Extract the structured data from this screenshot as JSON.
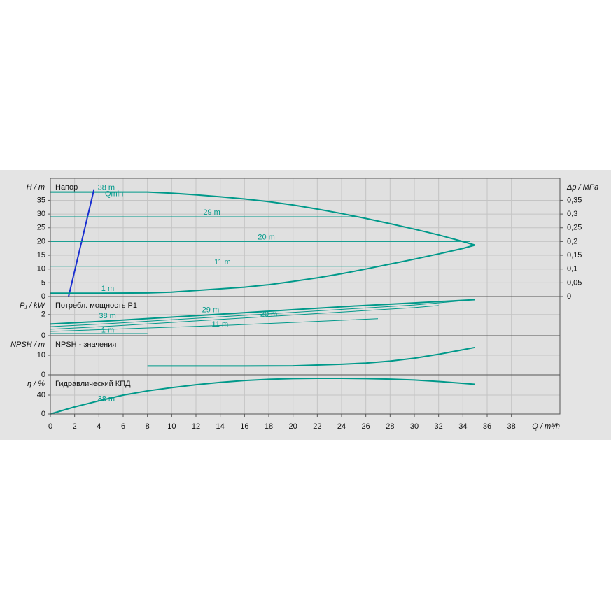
{
  "chart_data": [
    {
      "type": "line",
      "title": "Напор",
      "ylabel": "H / m",
      "y2label": "Δp / MPa",
      "grid": true,
      "xlim": [
        0,
        42
      ],
      "ylim": [
        0,
        43
      ],
      "yticks": [
        0,
        5,
        10,
        15,
        20,
        25,
        30,
        35
      ],
      "y2lim": [
        0,
        0.43
      ],
      "y2ticks": [
        0,
        {
          "value": 0.05,
          "label": "0,05"
        },
        {
          "value": 0.1,
          "label": "0,1"
        },
        {
          "value": 0.15,
          "label": "0,15"
        },
        {
          "value": 0.2,
          "label": "0,2"
        },
        {
          "value": 0.25,
          "label": "0,25"
        },
        {
          "value": 0.3,
          "label": "0,3"
        },
        {
          "value": 0.35,
          "label": "0,35"
        }
      ],
      "series": [
        {
          "name": "38 m",
          "color": "#00998a",
          "linewidth": 2,
          "x": [
            0,
            4,
            8,
            10,
            12,
            14,
            16,
            18,
            20,
            22,
            24,
            26,
            28,
            30,
            32,
            34,
            35
          ],
          "values": [
            38,
            38,
            38,
            37.6,
            37,
            36.3,
            35.5,
            34.5,
            33.3,
            31.8,
            30.2,
            28.4,
            26.5,
            24.5,
            22.4,
            20,
            18.7
          ]
        },
        {
          "name": "Qmin",
          "color": "#1a2fd0",
          "linewidth": 2,
          "x": [
            1.5,
            3.6
          ],
          "values": [
            0,
            39
          ]
        },
        {
          "name": "29 m",
          "color": "#00998a",
          "linewidth": 1,
          "x": [
            0,
            25
          ],
          "values": [
            29,
            29
          ]
        },
        {
          "name": "20 m",
          "color": "#00998a",
          "linewidth": 1,
          "x": [
            0,
            34.6
          ],
          "values": [
            20,
            20
          ]
        },
        {
          "name": "11 m",
          "color": "#00998a",
          "linewidth": 1,
          "x": [
            0,
            26.8
          ],
          "values": [
            11,
            11
          ]
        },
        {
          "name": "1 m",
          "color": "#00998a",
          "linewidth": 2,
          "x": [
            0,
            4,
            8,
            10,
            12,
            14,
            16,
            18,
            20,
            22,
            24,
            26,
            28,
            30,
            32,
            34,
            35
          ],
          "values": [
            1.2,
            1.2,
            1.3,
            1.6,
            2.2,
            2.8,
            3.4,
            4.3,
            5.5,
            6.8,
            8.3,
            10,
            11.8,
            13.6,
            15.5,
            17.5,
            18.7
          ]
        }
      ]
    },
    {
      "type": "line",
      "title": "Потребл. мощность P1",
      "ylabel": "P₁ / kW",
      "grid": true,
      "xlim": [
        0,
        42
      ],
      "ylim": [
        0,
        3.7
      ],
      "yticks": [
        0,
        2
      ],
      "series": [
        {
          "name": "38 m",
          "color": "#00998a",
          "linewidth": 2,
          "x": [
            0,
            5,
            10,
            15,
            20,
            25,
            30,
            35
          ],
          "values": [
            1.1,
            1.4,
            1.75,
            2.1,
            2.45,
            2.8,
            3.1,
            3.4
          ]
        },
        {
          "name": "29 m",
          "color": "#00998a",
          "linewidth": 1,
          "x": [
            0,
            5,
            10,
            15,
            20,
            25,
            30,
            34
          ],
          "values": [
            0.85,
            1.15,
            1.5,
            1.85,
            2.2,
            2.55,
            2.9,
            3.3
          ]
        },
        {
          "name": "20 m",
          "color": "#00998a",
          "linewidth": 1,
          "x": [
            0,
            5,
            10,
            15,
            20,
            25,
            30,
            32
          ],
          "values": [
            0.6,
            0.9,
            1.25,
            1.6,
            1.95,
            2.3,
            2.65,
            2.85
          ]
        },
        {
          "name": "11 m",
          "color": "#00998a",
          "linewidth": 1,
          "x": [
            0,
            5,
            10,
            15,
            20,
            25,
            27
          ],
          "values": [
            0.4,
            0.6,
            0.8,
            1.0,
            1.25,
            1.5,
            1.6
          ]
        },
        {
          "name": "1 m",
          "color": "#00998a",
          "linewidth": 1,
          "x": [
            0,
            8
          ],
          "values": [
            0.2,
            0.2
          ]
        }
      ]
    },
    {
      "type": "line",
      "title": "NPSH - значения",
      "ylabel": "NPSH / m",
      "grid": true,
      "xlim": [
        0,
        42
      ],
      "ylim": [
        0,
        20
      ],
      "yticks": [
        0,
        10
      ],
      "series": [
        {
          "color": "#00998a",
          "linewidth": 2,
          "x": [
            8,
            12,
            16,
            20,
            22,
            24,
            26,
            28,
            30,
            32,
            34,
            35
          ],
          "values": [
            4.5,
            4.5,
            4.5,
            4.6,
            5,
            5.4,
            6,
            7,
            8.5,
            10.5,
            12.8,
            14
          ]
        }
      ]
    },
    {
      "type": "line",
      "title": "Гидравлический КПД",
      "ylabel": "η / %",
      "xlabel": "Q / m³/h",
      "grid": true,
      "xlim": [
        0,
        42
      ],
      "ylim": [
        0,
        83
      ],
      "yticks": [
        0,
        40
      ],
      "xticks": [
        0,
        2,
        4,
        6,
        8,
        10,
        12,
        14,
        16,
        18,
        20,
        22,
        24,
        26,
        28,
        30,
        32,
        34,
        36,
        38
      ],
      "series": [
        {
          "name": "38 m",
          "color": "#00998a",
          "linewidth": 2,
          "x": [
            0,
            2,
            4,
            6,
            8,
            10,
            12,
            14,
            16,
            18,
            20,
            22,
            24,
            26,
            28,
            30,
            32,
            34,
            35
          ],
          "values": [
            0,
            15,
            28,
            40,
            49,
            56,
            62,
            67,
            71,
            73.5,
            75,
            75.5,
            75.5,
            75,
            74,
            72,
            69,
            65,
            63
          ]
        }
      ]
    }
  ]
}
